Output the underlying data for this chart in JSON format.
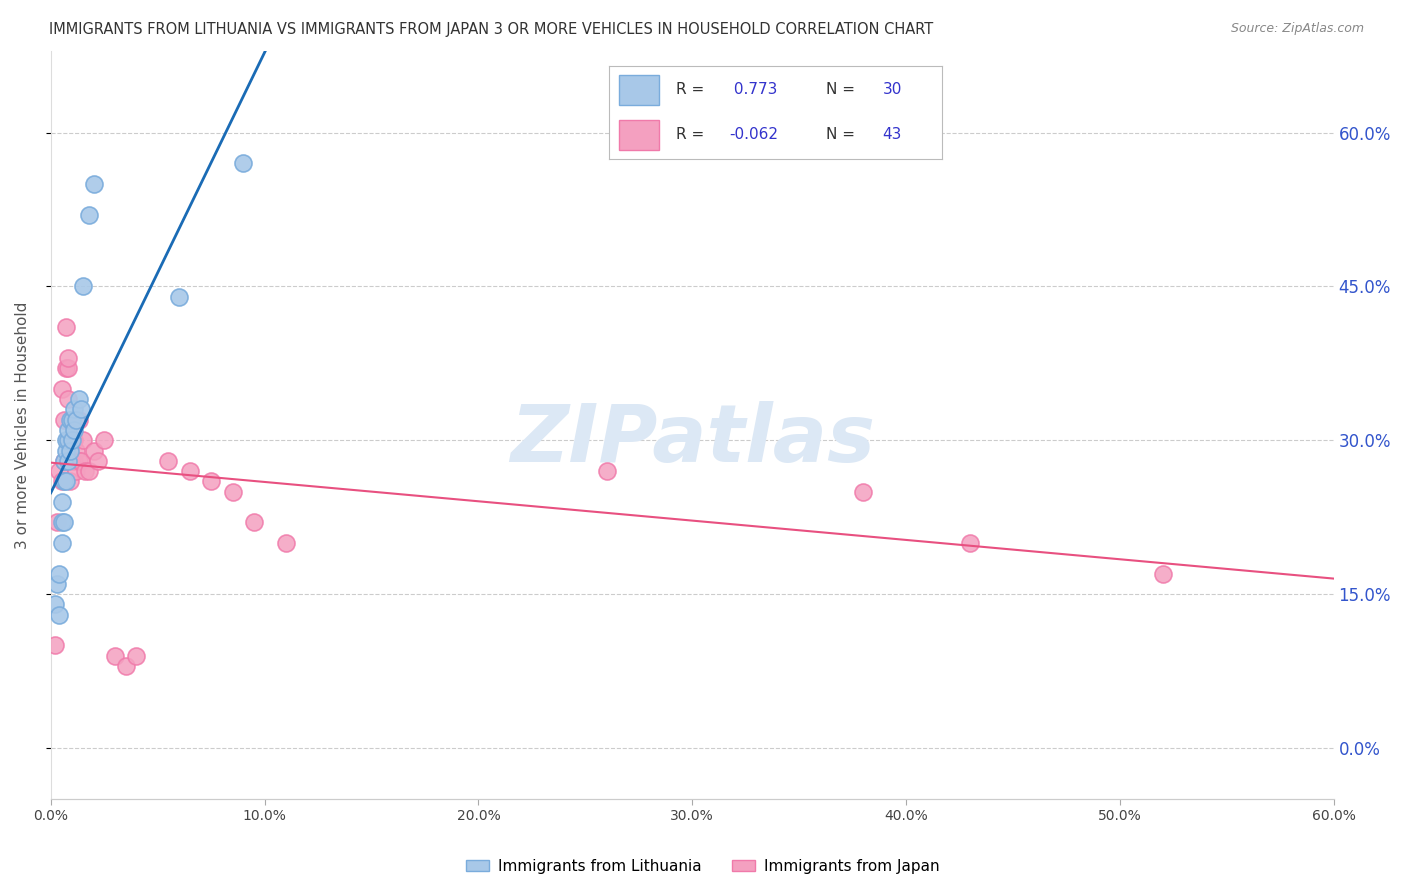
{
  "title": "IMMIGRANTS FROM LITHUANIA VS IMMIGRANTS FROM JAPAN 3 OR MORE VEHICLES IN HOUSEHOLD CORRELATION CHART",
  "source": "Source: ZipAtlas.com",
  "ylabel": "3 or more Vehicles in Household",
  "xlim": [
    0.0,
    0.6
  ],
  "ylim": [
    -0.05,
    0.68
  ],
  "yticks": [
    0.0,
    0.15,
    0.3,
    0.45,
    0.6
  ],
  "xticks": [
    0.0,
    0.1,
    0.2,
    0.3,
    0.4,
    0.5,
    0.6
  ],
  "blue_R": 0.773,
  "blue_N": 30,
  "pink_R": -0.062,
  "pink_N": 43,
  "blue_label": "Immigrants from Lithuania",
  "pink_label": "Immigrants from Japan",
  "blue_color": "#a8c8e8",
  "pink_color": "#f4a0c0",
  "blue_edge_color": "#7aacdc",
  "pink_edge_color": "#f07aaa",
  "blue_line_color": "#1a6bb5",
  "pink_line_color": "#e85080",
  "legend_text_color": "#3333cc",
  "background_color": "#ffffff",
  "grid_color": "#cccccc",
  "right_axis_color": "#3355cc",
  "watermark": "ZIPatlas",
  "blue_x": [
    0.002,
    0.003,
    0.004,
    0.004,
    0.005,
    0.005,
    0.005,
    0.006,
    0.006,
    0.006,
    0.007,
    0.007,
    0.007,
    0.008,
    0.008,
    0.008,
    0.009,
    0.009,
    0.01,
    0.01,
    0.011,
    0.011,
    0.012,
    0.013,
    0.014,
    0.015,
    0.018,
    0.02,
    0.06,
    0.09
  ],
  "blue_y": [
    0.14,
    0.16,
    0.13,
    0.17,
    0.2,
    0.22,
    0.24,
    0.22,
    0.26,
    0.28,
    0.26,
    0.29,
    0.3,
    0.28,
    0.3,
    0.31,
    0.29,
    0.32,
    0.3,
    0.32,
    0.31,
    0.33,
    0.32,
    0.34,
    0.33,
    0.45,
    0.52,
    0.55,
    0.44,
    0.57
  ],
  "pink_x": [
    0.002,
    0.003,
    0.004,
    0.005,
    0.005,
    0.006,
    0.006,
    0.007,
    0.007,
    0.008,
    0.008,
    0.008,
    0.009,
    0.009,
    0.01,
    0.01,
    0.01,
    0.011,
    0.011,
    0.012,
    0.012,
    0.013,
    0.013,
    0.014,
    0.015,
    0.016,
    0.018,
    0.02,
    0.022,
    0.025,
    0.03,
    0.035,
    0.04,
    0.055,
    0.065,
    0.075,
    0.085,
    0.095,
    0.11,
    0.26,
    0.38,
    0.43,
    0.52
  ],
  "pink_y": [
    0.1,
    0.22,
    0.27,
    0.26,
    0.35,
    0.28,
    0.32,
    0.37,
    0.41,
    0.34,
    0.37,
    0.38,
    0.26,
    0.3,
    0.28,
    0.3,
    0.32,
    0.28,
    0.3,
    0.27,
    0.29,
    0.32,
    0.28,
    0.28,
    0.3,
    0.27,
    0.27,
    0.29,
    0.28,
    0.3,
    0.09,
    0.08,
    0.09,
    0.28,
    0.27,
    0.26,
    0.25,
    0.22,
    0.2,
    0.27,
    0.25,
    0.2,
    0.17
  ]
}
